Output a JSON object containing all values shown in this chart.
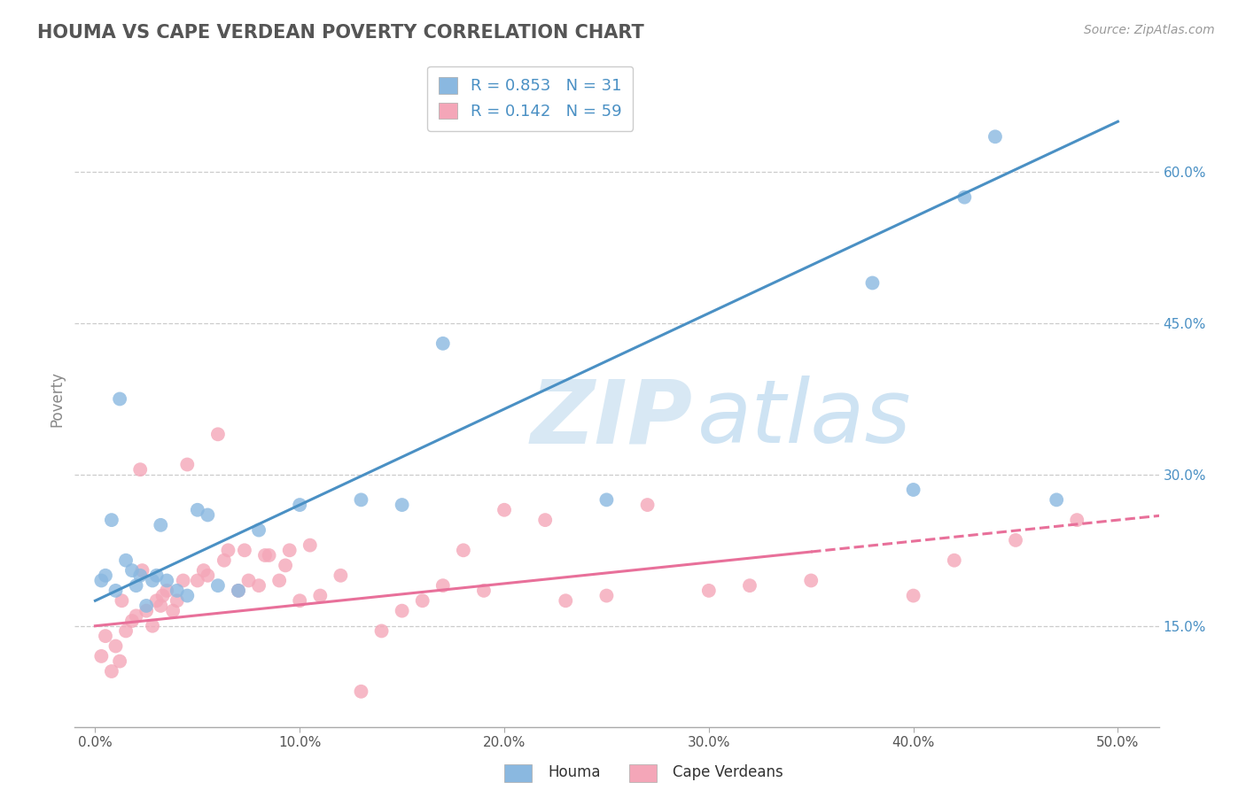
{
  "title": "HOUMA VS CAPE VERDEAN POVERTY CORRELATION CHART",
  "source": "Source: ZipAtlas.com",
  "ylabel": "Poverty",
  "x_tick_labels": [
    "0.0%",
    "10.0%",
    "20.0%",
    "30.0%",
    "40.0%",
    "50.0%"
  ],
  "x_tick_values": [
    0,
    10,
    20,
    30,
    40,
    50
  ],
  "y_tick_labels": [
    "15.0%",
    "30.0%",
    "45.0%",
    "60.0%"
  ],
  "y_tick_values": [
    15,
    30,
    45,
    60
  ],
  "xlim": [
    -1,
    52
  ],
  "ylim": [
    5,
    70
  ],
  "houma_color": "#8ab8e0",
  "cape_color": "#f4a6b8",
  "houma_line_color": "#4a90c4",
  "cape_line_color": "#e8709a",
  "houma_R": 0.853,
  "houma_N": 31,
  "cape_R": 0.142,
  "cape_N": 59,
  "legend_entries": [
    "Houma",
    "Cape Verdeans"
  ],
  "grid_color": "#cccccc",
  "background_color": "#ffffff",
  "watermark_zip": "ZIP",
  "watermark_atlas": "atlas",
  "houma_line_x0": 0,
  "houma_line_y0": 17.5,
  "houma_line_x1": 50,
  "houma_line_y1": 65.0,
  "cape_line_x0": 0,
  "cape_line_y0": 15.0,
  "cape_line_x1": 50,
  "cape_line_y1": 25.5,
  "cape_dash_start": 35,
  "houma_scatter_x": [
    0.3,
    0.5,
    0.8,
    1.0,
    1.2,
    1.5,
    1.8,
    2.0,
    2.2,
    2.5,
    2.8,
    3.0,
    3.2,
    3.5,
    4.0,
    4.5,
    5.0,
    5.5,
    6.0,
    7.0,
    8.0,
    10.0,
    13.0,
    15.0,
    17.0,
    25.0,
    38.0,
    40.0,
    42.5,
    44.0,
    47.0
  ],
  "houma_scatter_y": [
    19.5,
    20.0,
    25.5,
    18.5,
    37.5,
    21.5,
    20.5,
    19.0,
    20.0,
    17.0,
    19.5,
    20.0,
    25.0,
    19.5,
    18.5,
    18.0,
    26.5,
    26.0,
    19.0,
    18.5,
    24.5,
    27.0,
    27.5,
    27.0,
    43.0,
    27.5,
    49.0,
    28.5,
    57.5,
    63.5,
    27.5
  ],
  "cape_scatter_x": [
    0.3,
    0.5,
    0.8,
    1.0,
    1.2,
    1.5,
    1.8,
    2.0,
    2.2,
    2.5,
    2.8,
    3.0,
    3.2,
    3.5,
    3.8,
    4.0,
    4.5,
    5.0,
    5.5,
    6.0,
    6.5,
    7.0,
    7.5,
    8.0,
    8.5,
    9.0,
    9.5,
    10.0,
    10.5,
    11.0,
    12.0,
    13.0,
    14.0,
    15.0,
    16.0,
    17.0,
    18.0,
    19.0,
    20.0,
    22.0,
    23.0,
    25.0,
    27.0,
    30.0,
    32.0,
    35.0,
    40.0,
    42.0,
    45.0,
    48.0,
    1.3,
    2.3,
    3.3,
    4.3,
    5.3,
    6.3,
    7.3,
    8.3,
    9.3
  ],
  "cape_scatter_y": [
    12.0,
    14.0,
    10.5,
    13.0,
    11.5,
    14.5,
    15.5,
    16.0,
    30.5,
    16.5,
    15.0,
    17.5,
    17.0,
    18.5,
    16.5,
    17.5,
    31.0,
    19.5,
    20.0,
    34.0,
    22.5,
    18.5,
    19.5,
    19.0,
    22.0,
    19.5,
    22.5,
    17.5,
    23.0,
    18.0,
    20.0,
    8.5,
    14.5,
    16.5,
    17.5,
    19.0,
    22.5,
    18.5,
    26.5,
    25.5,
    17.5,
    18.0,
    27.0,
    18.5,
    19.0,
    19.5,
    18.0,
    21.5,
    23.5,
    25.5,
    17.5,
    20.5,
    18.0,
    19.5,
    20.5,
    21.5,
    22.5,
    22.0,
    21.0
  ]
}
